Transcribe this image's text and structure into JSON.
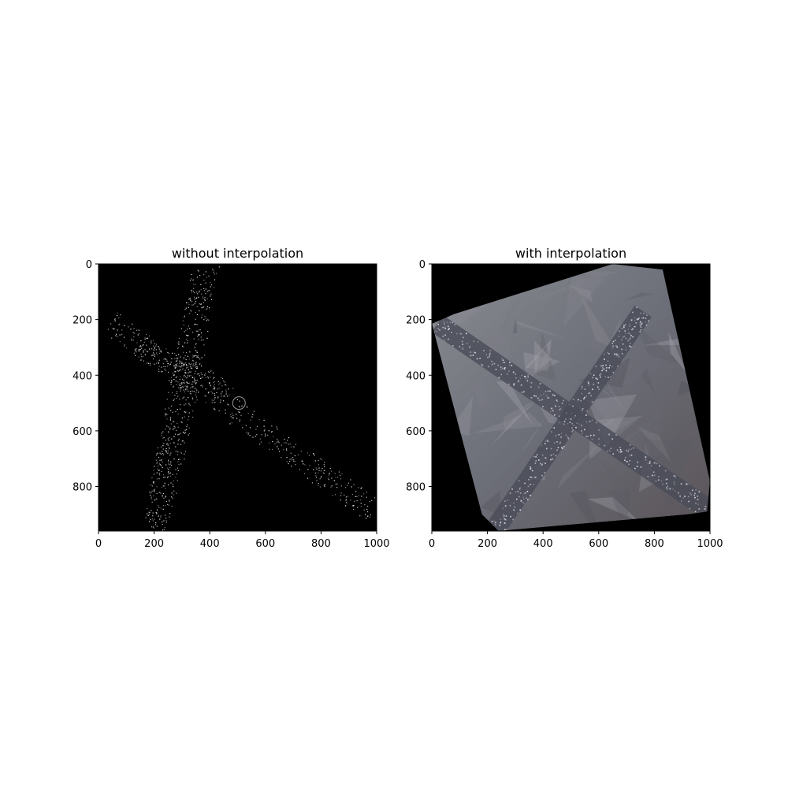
{
  "chart_data": [
    {
      "type": "image",
      "title": "without interpolation",
      "xlim": [
        0,
        1000
      ],
      "ylim": [
        960,
        0
      ],
      "xticks": [
        0,
        200,
        400,
        600,
        800,
        1000
      ],
      "yticks": [
        0,
        200,
        400,
        600,
        800
      ],
      "background": "#000000",
      "content": "sparse grey point samples forming an X-shaped road intersection on black"
    },
    {
      "type": "image",
      "title": "with interpolation",
      "xlim": [
        0,
        1000
      ],
      "ylim": [
        960,
        0
      ],
      "xticks": [
        0,
        200,
        400,
        600,
        800,
        1000
      ],
      "yticks": [
        0,
        200,
        400,
        600,
        800
      ],
      "background": "#000000",
      "hull_polygon": [
        [
          0,
          215
        ],
        [
          80,
          180
        ],
        [
          650,
          0
        ],
        [
          830,
          20
        ],
        [
          1000,
          780
        ],
        [
          990,
          890
        ],
        [
          920,
          900
        ],
        [
          240,
          960
        ],
        [
          180,
          900
        ]
      ],
      "content": "interpolated grey-tone triangulated surface filling the convex hull, X-shaped road visible"
    }
  ]
}
